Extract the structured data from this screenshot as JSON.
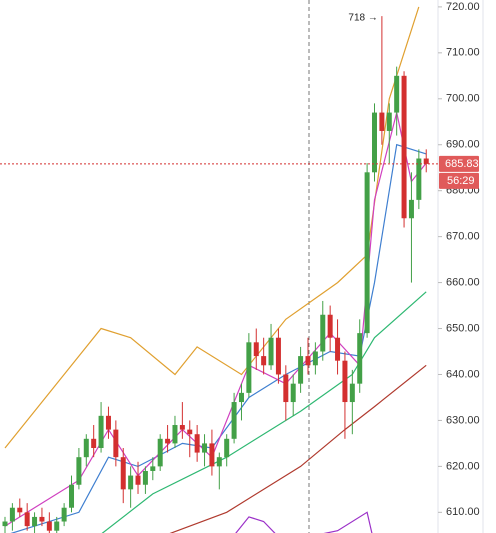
{
  "chart_data": {
    "type": "candlestick",
    "up_color": "#43a047",
    "down_color": "#d32f2f",
    "ylim": [
      605.5,
      721.5
    ],
    "yticks": [
      {
        "value": 720,
        "label": "720.00"
      },
      {
        "value": 710,
        "label": "710.00"
      },
      {
        "value": 700,
        "label": "700.00"
      },
      {
        "value": 690,
        "label": "690.00"
      },
      {
        "value": 680,
        "label": "680.00"
      },
      {
        "value": 670,
        "label": "670.00"
      },
      {
        "value": 660,
        "label": "660.00"
      },
      {
        "value": 650,
        "label": "650.00"
      },
      {
        "value": 640,
        "label": "640.00"
      },
      {
        "value": 630,
        "label": "630.00"
      },
      {
        "value": 620,
        "label": "620.00"
      },
      {
        "value": 610,
        "label": "610.00"
      }
    ],
    "candles": [
      [
        607,
        609,
        604,
        608
      ],
      [
        608,
        612,
        606,
        611
      ],
      [
        611,
        613,
        609,
        610
      ],
      [
        610,
        612,
        606,
        607
      ],
      [
        607,
        610,
        605,
        609
      ],
      [
        609,
        611,
        607,
        608
      ],
      [
        608,
        610,
        604,
        606
      ],
      [
        606,
        609,
        604,
        608
      ],
      [
        608,
        612,
        607,
        611
      ],
      [
        611,
        618,
        610,
        616
      ],
      [
        616,
        624,
        615,
        622
      ],
      [
        622,
        627,
        620,
        626
      ],
      [
        626,
        629,
        622,
        624
      ],
      [
        624,
        634,
        623,
        631
      ],
      [
        631,
        633,
        626,
        628
      ],
      [
        628,
        630,
        620,
        622
      ],
      [
        622,
        624,
        612,
        615
      ],
      [
        615,
        620,
        611,
        618
      ],
      [
        618,
        621,
        614,
        616
      ],
      [
        616,
        620,
        614,
        619
      ],
      [
        619,
        622,
        617,
        620
      ],
      [
        620,
        627,
        619,
        626
      ],
      [
        626,
        629,
        623,
        625
      ],
      [
        625,
        631,
        624,
        629
      ],
      [
        629,
        634,
        626,
        628
      ],
      [
        628,
        630,
        622,
        627
      ],
      [
        627,
        629,
        621,
        623
      ],
      [
        623,
        627,
        620,
        625
      ],
      [
        625,
        628,
        618,
        620
      ],
      [
        620,
        623,
        615,
        622
      ],
      [
        622,
        627,
        620,
        626
      ],
      [
        626,
        636,
        625,
        634
      ],
      [
        634,
        638,
        630,
        636
      ],
      [
        636,
        649,
        635,
        647
      ],
      [
        647,
        650,
        641,
        644
      ],
      [
        644,
        648,
        640,
        642
      ],
      [
        642,
        651,
        641,
        648
      ],
      [
        648,
        650,
        638,
        640
      ],
      [
        640,
        642,
        630,
        634
      ],
      [
        634,
        640,
        631,
        638
      ],
      [
        638,
        646,
        636,
        644
      ],
      [
        644,
        648,
        640,
        642
      ],
      [
        642,
        647,
        640,
        645
      ],
      [
        645,
        656,
        643,
        653
      ],
      [
        653,
        655,
        645,
        648
      ],
      [
        648,
        652,
        640,
        643
      ],
      [
        643,
        645,
        626,
        634
      ],
      [
        634,
        641,
        627,
        638
      ],
      [
        638,
        652,
        636,
        649
      ],
      [
        649,
        686,
        648,
        684
      ],
      [
        684,
        699,
        682,
        697
      ],
      [
        697,
        718,
        690,
        693
      ],
      [
        693,
        699,
        686,
        697
      ],
      [
        697,
        707,
        692,
        705
      ],
      [
        705,
        706,
        672,
        674
      ],
      [
        674,
        684,
        660,
        678
      ],
      [
        678,
        689,
        676,
        687
      ],
      [
        687,
        689,
        684,
        685.83
      ]
    ],
    "series": [
      {
        "color": "#e0a030",
        "x": [
          0,
          8,
          13,
          17,
          23,
          26,
          32,
          38,
          45,
          49,
          52,
          56
        ],
        "values": [
          624,
          640,
          650,
          648,
          640,
          646,
          640,
          652,
          660,
          666,
          700,
          720
        ]
      },
      {
        "color": "#b03a2e",
        "x": [
          20,
          30,
          40,
          46,
          50,
          57
        ],
        "values": [
          604,
          610,
          620,
          628,
          633,
          642
        ]
      },
      {
        "color": "#2eb872",
        "x": [
          12,
          20,
          30,
          40,
          47,
          50,
          57
        ],
        "values": [
          604,
          614,
          622,
          632,
          640,
          648,
          658
        ]
      },
      {
        "color": "#3f7fd0",
        "x": [
          0,
          10,
          14,
          18,
          24,
          28,
          33,
          38,
          44,
          48,
          50,
          53,
          57
        ],
        "values": [
          605,
          610,
          622,
          620,
          625,
          624,
          635,
          640,
          645,
          644,
          660,
          690,
          688
        ]
      },
      {
        "color": "#d040c0",
        "x": [
          0,
          10,
          14,
          18,
          24,
          28,
          33,
          38,
          44,
          48,
          50,
          53,
          55,
          57
        ],
        "values": [
          607,
          617,
          628,
          618,
          628,
          622,
          642,
          638,
          649,
          642,
          678,
          697,
          682,
          686
        ]
      },
      {
        "color": "#9b30c8",
        "x": [
          30,
          33,
          35,
          38,
          42,
          45,
          49,
          50
        ],
        "values": [
          603,
          609,
          608,
          603,
          605,
          606,
          610,
          603
        ]
      }
    ],
    "high_index": 51,
    "high_label": "718 →",
    "last_price": 685.83,
    "countdown": "56:29"
  }
}
